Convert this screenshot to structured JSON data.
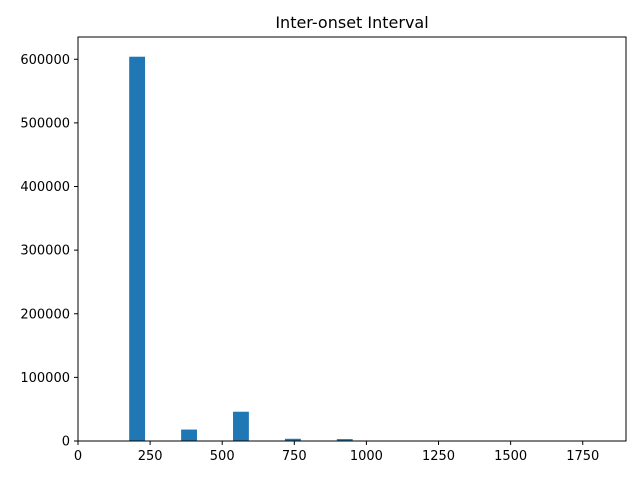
{
  "chart_data": {
    "type": "bar",
    "title": "Inter-onset Interval",
    "xlabel": "",
    "ylabel": "",
    "xlim": [
      0,
      1900
    ],
    "ylim": [
      0,
      635000
    ],
    "x_ticks": [
      0,
      250,
      500,
      750,
      1000,
      1250,
      1500,
      1750
    ],
    "x_tick_labels": [
      "0",
      "250",
      "500",
      "750",
      "1000",
      "1250",
      "1500",
      "1750"
    ],
    "y_ticks": [
      0,
      100000,
      200000,
      300000,
      400000,
      500000,
      600000
    ],
    "y_tick_labels": [
      "0",
      "100000",
      "200000",
      "300000",
      "400000",
      "500000",
      "600000"
    ],
    "bin_width": 55,
    "bars": [
      {
        "x": 205,
        "value": 604000
      },
      {
        "x": 385,
        "value": 18000
      },
      {
        "x": 565,
        "value": 46000
      },
      {
        "x": 745,
        "value": 3500
      },
      {
        "x": 925,
        "value": 3000
      }
    ],
    "grid": false,
    "bar_color": "#1f77b4"
  }
}
